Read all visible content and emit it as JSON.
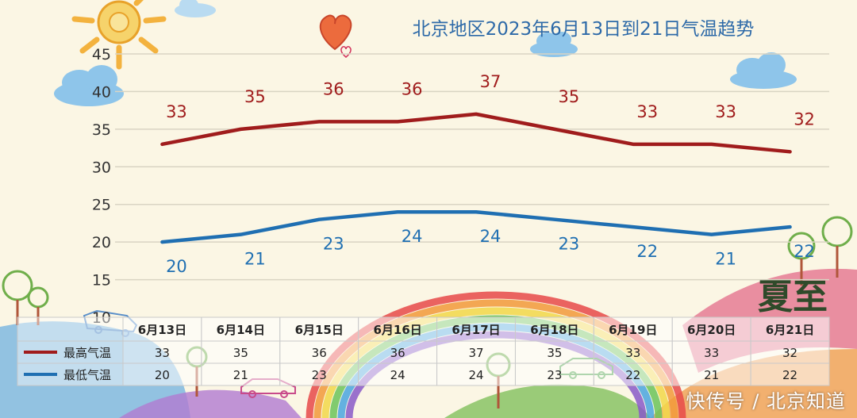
{
  "chart_data": {
    "type": "line",
    "title": "北京地区2023年6月13日到21日气温趋势",
    "categories": [
      "6月13日",
      "6月14日",
      "6月15日",
      "6月16日",
      "6月17日",
      "6月18日",
      "6月19日",
      "6月20日",
      "6月21日"
    ],
    "series": [
      {
        "name": "最高气温",
        "values": [
          33,
          35,
          36,
          36,
          37,
          35,
          33,
          33,
          32
        ],
        "color": "#a01c1c"
      },
      {
        "name": "最低气温",
        "values": [
          20,
          21,
          23,
          24,
          24,
          23,
          22,
          21,
          22
        ],
        "color": "#1f6fb2"
      }
    ],
    "ylim": [
      10,
      45
    ],
    "yticks": [
      10,
      15,
      20,
      25,
      30,
      35,
      40,
      45
    ],
    "grid": true,
    "legend": "data-table"
  },
  "decor": {
    "summer_char": "夏至",
    "watermark": "快传号 / 北京知道"
  },
  "colors": {
    "title": "#2e6aa8",
    "axis_text": "#333333",
    "grid": "#d9d4c3"
  }
}
